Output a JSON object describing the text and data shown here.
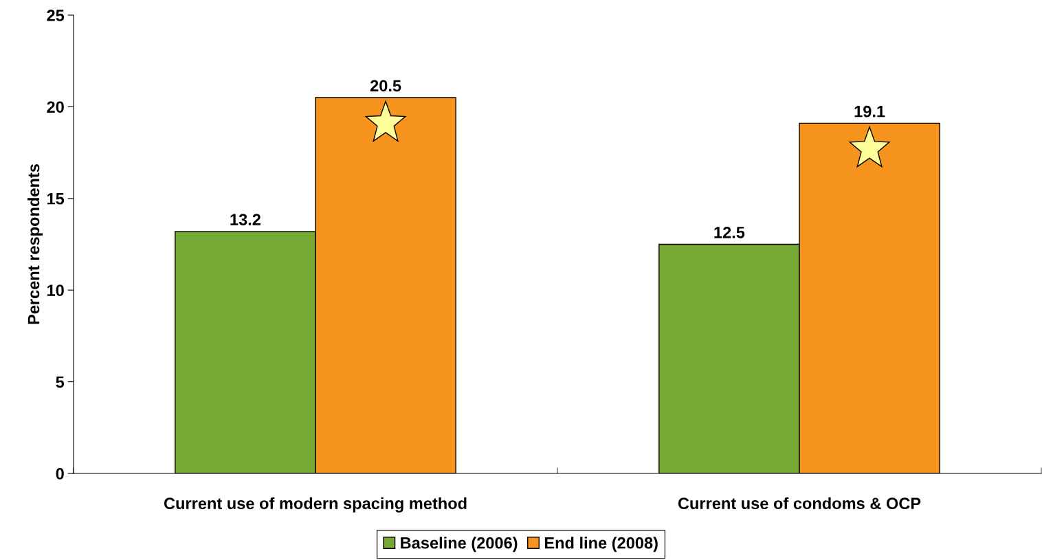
{
  "chart_data": {
    "type": "bar",
    "ylabel": "Percent respondents",
    "categories": [
      "Current use of modern spacing method",
      "Current use of condoms & OCP"
    ],
    "series": [
      {
        "name": "Baseline (2006)",
        "color": "#76a836",
        "values": [
          13.2,
          12.5
        ]
      },
      {
        "name": "End line (2008)",
        "color": "#f7941d",
        "values": [
          20.5,
          19.1
        ]
      }
    ],
    "ylim": [
      0,
      25
    ],
    "yticks": [
      0,
      5,
      10,
      15,
      20,
      25
    ],
    "data_labels": true,
    "grid": false,
    "legend": "bottom"
  }
}
